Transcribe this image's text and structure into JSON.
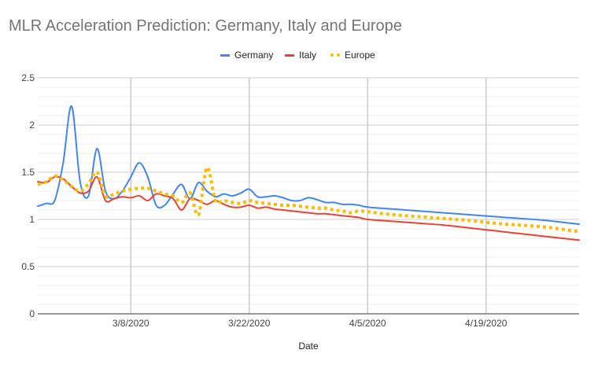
{
  "chart_data": {
    "type": "line",
    "title": "MLR Acceleration Prediction: Germany, Italy and Europe",
    "xlabel": "Date",
    "ylabel": "",
    "ylim": [
      0,
      2.5
    ],
    "yticks": [
      "0",
      "0.5",
      "1",
      "1.5",
      "2",
      "2.5"
    ],
    "xticks": [
      "3/8/2020",
      "3/22/2020",
      "4/5/2020",
      "4/19/2020"
    ],
    "xrange": [
      "2/26/2020",
      "4/30/2020"
    ],
    "grid": true,
    "legend_position": "top",
    "series": [
      {
        "name": "Germany",
        "color": "#4285f4",
        "style": "solid",
        "points": [
          [
            "2/26/2020",
            1.14
          ],
          [
            "2/27/2020",
            1.17
          ],
          [
            "2/28/2020",
            1.2
          ],
          [
            "2/29/2020",
            1.6
          ],
          [
            "3/1/2020",
            2.2
          ],
          [
            "3/2/2020",
            1.4
          ],
          [
            "3/3/2020",
            1.25
          ],
          [
            "3/4/2020",
            1.75
          ],
          [
            "3/5/2020",
            1.3
          ],
          [
            "3/6/2020",
            1.22
          ],
          [
            "3/7/2020",
            1.3
          ],
          [
            "3/8/2020",
            1.45
          ],
          [
            "3/9/2020",
            1.6
          ],
          [
            "3/10/2020",
            1.45
          ],
          [
            "3/11/2020",
            1.15
          ],
          [
            "3/12/2020",
            1.15
          ],
          [
            "3/13/2020",
            1.27
          ],
          [
            "3/14/2020",
            1.37
          ],
          [
            "3/15/2020",
            1.22
          ],
          [
            "3/16/2020",
            1.39
          ],
          [
            "3/17/2020",
            1.3
          ],
          [
            "3/18/2020",
            1.24
          ],
          [
            "3/19/2020",
            1.27
          ],
          [
            "3/20/2020",
            1.25
          ],
          [
            "3/21/2020",
            1.28
          ],
          [
            "3/22/2020",
            1.32
          ],
          [
            "3/23/2020",
            1.24
          ],
          [
            "3/24/2020",
            1.24
          ],
          [
            "3/25/2020",
            1.25
          ],
          [
            "3/26/2020",
            1.23
          ],
          [
            "3/27/2020",
            1.2
          ],
          [
            "3/28/2020",
            1.2
          ],
          [
            "3/29/2020",
            1.23
          ],
          [
            "3/30/2020",
            1.21
          ],
          [
            "3/31/2020",
            1.18
          ],
          [
            "4/1/2020",
            1.18
          ],
          [
            "4/2/2020",
            1.16
          ],
          [
            "4/3/2020",
            1.16
          ],
          [
            "4/4/2020",
            1.15
          ],
          [
            "4/5/2020",
            1.13
          ],
          [
            "4/8/2020",
            1.11
          ],
          [
            "4/11/2020",
            1.09
          ],
          [
            "4/14/2020",
            1.07
          ],
          [
            "4/17/2020",
            1.05
          ],
          [
            "4/20/2020",
            1.03
          ],
          [
            "4/23/2020",
            1.01
          ],
          [
            "4/26/2020",
            0.99
          ],
          [
            "4/30/2020",
            0.95
          ]
        ]
      },
      {
        "name": "Italy",
        "color": "#ea4335",
        "style": "solid",
        "points": [
          [
            "2/26/2020",
            1.4
          ],
          [
            "2/27/2020",
            1.39
          ],
          [
            "2/28/2020",
            1.45
          ],
          [
            "2/29/2020",
            1.43
          ],
          [
            "3/1/2020",
            1.35
          ],
          [
            "3/2/2020",
            1.28
          ],
          [
            "3/3/2020",
            1.3
          ],
          [
            "3/4/2020",
            1.45
          ],
          [
            "3/5/2020",
            1.2
          ],
          [
            "3/6/2020",
            1.22
          ],
          [
            "3/7/2020",
            1.24
          ],
          [
            "3/8/2020",
            1.23
          ],
          [
            "3/9/2020",
            1.25
          ],
          [
            "3/10/2020",
            1.2
          ],
          [
            "3/11/2020",
            1.27
          ],
          [
            "3/12/2020",
            1.25
          ],
          [
            "3/13/2020",
            1.22
          ],
          [
            "3/14/2020",
            1.1
          ],
          [
            "3/15/2020",
            1.22
          ],
          [
            "3/16/2020",
            1.2
          ],
          [
            "3/17/2020",
            1.16
          ],
          [
            "3/18/2020",
            1.2
          ],
          [
            "3/19/2020",
            1.16
          ],
          [
            "3/20/2020",
            1.13
          ],
          [
            "3/21/2020",
            1.13
          ],
          [
            "3/22/2020",
            1.15
          ],
          [
            "3/23/2020",
            1.12
          ],
          [
            "3/24/2020",
            1.13
          ],
          [
            "3/25/2020",
            1.11
          ],
          [
            "3/26/2020",
            1.1
          ],
          [
            "3/27/2020",
            1.09
          ],
          [
            "3/28/2020",
            1.08
          ],
          [
            "3/29/2020",
            1.07
          ],
          [
            "3/30/2020",
            1.06
          ],
          [
            "3/31/2020",
            1.06
          ],
          [
            "4/1/2020",
            1.05
          ],
          [
            "4/2/2020",
            1.04
          ],
          [
            "4/3/2020",
            1.03
          ],
          [
            "4/4/2020",
            1.02
          ],
          [
            "4/5/2020",
            1.0
          ],
          [
            "4/8/2020",
            0.98
          ],
          [
            "4/11/2020",
            0.96
          ],
          [
            "4/14/2020",
            0.94
          ],
          [
            "4/17/2020",
            0.91
          ],
          [
            "4/20/2020",
            0.88
          ],
          [
            "4/23/2020",
            0.85
          ],
          [
            "4/26/2020",
            0.82
          ],
          [
            "4/30/2020",
            0.78
          ]
        ]
      },
      {
        "name": "Europe",
        "color": "#fbbc04",
        "style": "dotted",
        "points": [
          [
            "2/26/2020",
            1.37
          ],
          [
            "2/27/2020",
            1.4
          ],
          [
            "2/28/2020",
            1.46
          ],
          [
            "2/29/2020",
            1.42
          ],
          [
            "3/1/2020",
            1.35
          ],
          [
            "3/2/2020",
            1.3
          ],
          [
            "3/3/2020",
            1.38
          ],
          [
            "3/4/2020",
            1.5
          ],
          [
            "3/5/2020",
            1.25
          ],
          [
            "3/6/2020",
            1.27
          ],
          [
            "3/7/2020",
            1.3
          ],
          [
            "3/8/2020",
            1.32
          ],
          [
            "3/9/2020",
            1.33
          ],
          [
            "3/10/2020",
            1.33
          ],
          [
            "3/11/2020",
            1.3
          ],
          [
            "3/12/2020",
            1.27
          ],
          [
            "3/13/2020",
            1.25
          ],
          [
            "3/14/2020",
            1.18
          ],
          [
            "3/15/2020",
            1.28
          ],
          [
            "3/16/2020",
            1.05
          ],
          [
            "3/17/2020",
            1.55
          ],
          [
            "3/18/2020",
            1.2
          ],
          [
            "3/19/2020",
            1.2
          ],
          [
            "3/20/2020",
            1.18
          ],
          [
            "3/21/2020",
            1.17
          ],
          [
            "3/22/2020",
            1.2
          ],
          [
            "3/23/2020",
            1.18
          ],
          [
            "3/24/2020",
            1.17
          ],
          [
            "3/25/2020",
            1.16
          ],
          [
            "3/26/2020",
            1.15
          ],
          [
            "3/27/2020",
            1.15
          ],
          [
            "3/28/2020",
            1.14
          ],
          [
            "3/29/2020",
            1.13
          ],
          [
            "3/30/2020",
            1.12
          ],
          [
            "3/31/2020",
            1.12
          ],
          [
            "4/1/2020",
            1.1
          ],
          [
            "4/2/2020",
            1.09
          ],
          [
            "4/3/2020",
            1.07
          ],
          [
            "4/4/2020",
            1.09
          ],
          [
            "4/5/2020",
            1.08
          ],
          [
            "4/8/2020",
            1.05
          ],
          [
            "4/11/2020",
            1.03
          ],
          [
            "4/14/2020",
            1.01
          ],
          [
            "4/17/2020",
            0.99
          ],
          [
            "4/20/2020",
            0.96
          ],
          [
            "4/23/2020",
            0.94
          ],
          [
            "4/26/2020",
            0.92
          ],
          [
            "4/30/2020",
            0.87
          ]
        ]
      }
    ]
  }
}
